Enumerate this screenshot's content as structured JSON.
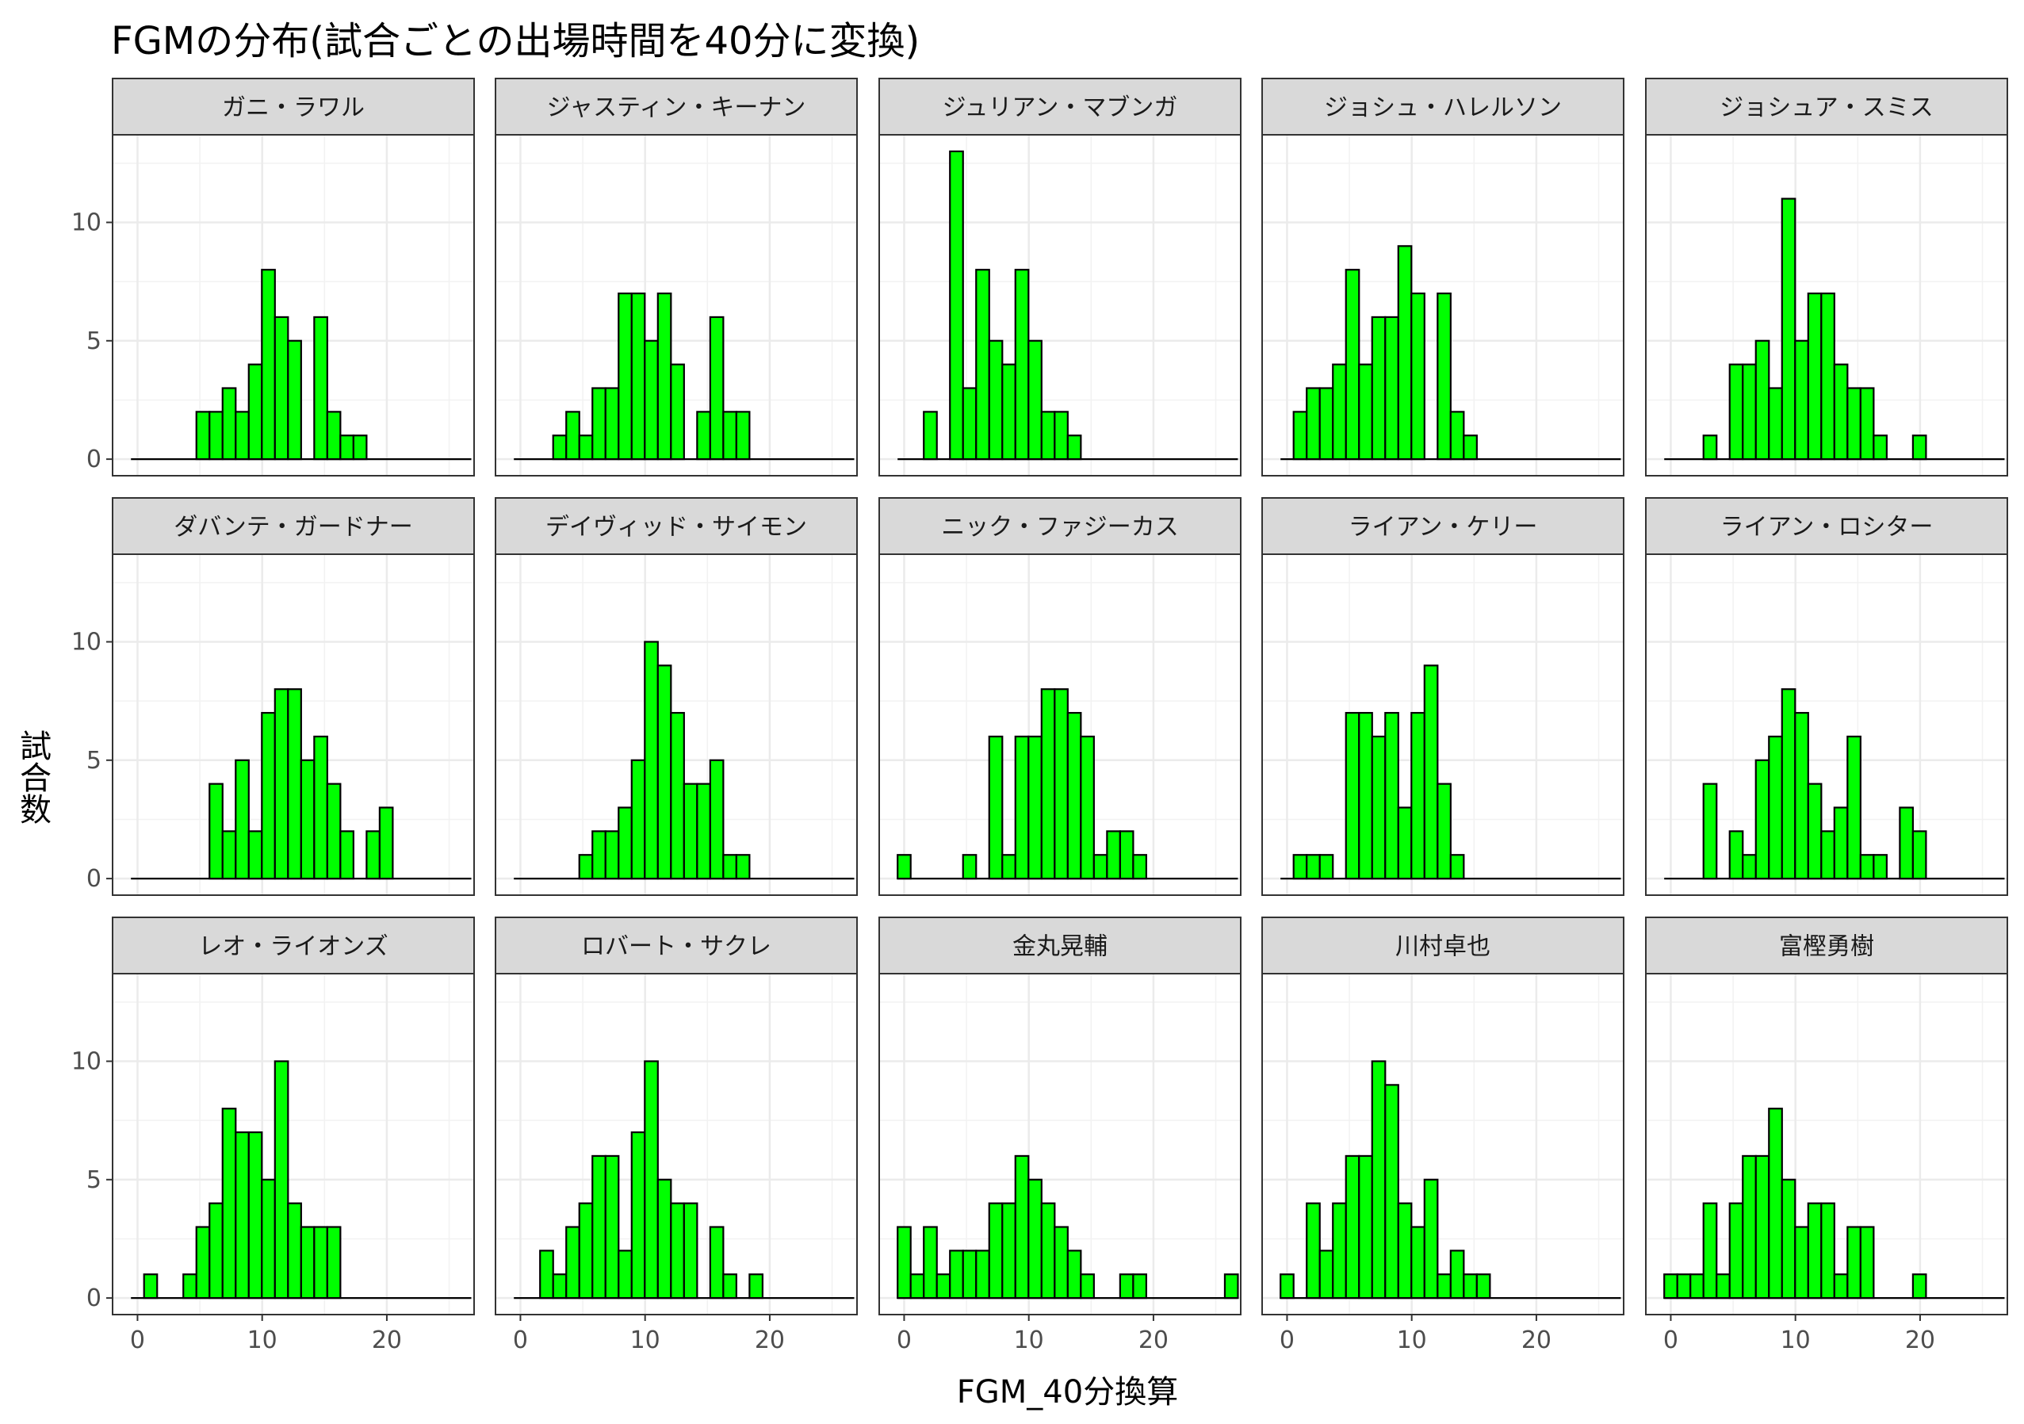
{
  "chart_data": {
    "type": "bar",
    "title": "FGMの分布(試合ごとの出場時間を40分に変換)",
    "xlabel": "FGM_40分換算",
    "ylabel": "試合数",
    "xlim": [
      -2,
      27
    ],
    "ylim": [
      -0.7,
      13.7
    ],
    "x_ticks": [
      0,
      10,
      20
    ],
    "y_ticks": [
      0,
      5,
      10
    ],
    "grid": true,
    "facet_layout": {
      "ncol": 5,
      "nrow": 3
    },
    "bin_width": 1.05,
    "bin_start": -0.525,
    "bin_count": 26,
    "bar_color": "#00ff00",
    "bar_outline": "#000000",
    "panels": [
      {
        "name": "ガニ・ラワル",
        "counts": [
          0,
          0,
          0,
          0,
          0,
          2,
          2,
          3,
          2,
          4,
          8,
          6,
          5,
          0,
          6,
          2,
          1,
          1,
          0,
          0,
          0,
          0,
          0,
          0,
          0,
          0
        ]
      },
      {
        "name": "ジャスティン・キーナン",
        "counts": [
          0,
          0,
          0,
          1,
          2,
          1,
          3,
          3,
          7,
          7,
          5,
          7,
          4,
          0,
          2,
          6,
          2,
          2,
          0,
          0,
          0,
          0,
          0,
          0,
          0,
          0
        ]
      },
      {
        "name": "ジュリアン・マブンガ",
        "counts": [
          0,
          0,
          2,
          0,
          13,
          3,
          8,
          5,
          4,
          8,
          5,
          2,
          2,
          1,
          0,
          0,
          0,
          0,
          0,
          0,
          0,
          0,
          0,
          0,
          0,
          0
        ]
      },
      {
        "name": "ジョシュ・ハレルソン",
        "counts": [
          0,
          2,
          3,
          3,
          4,
          8,
          4,
          6,
          6,
          9,
          7,
          0,
          7,
          2,
          1,
          0,
          0,
          0,
          0,
          0,
          0,
          0,
          0,
          0,
          0,
          0
        ]
      },
      {
        "name": "ジョシュア・スミス",
        "counts": [
          0,
          0,
          0,
          1,
          0,
          4,
          4,
          5,
          3,
          11,
          5,
          7,
          7,
          4,
          3,
          3,
          1,
          0,
          0,
          1,
          0,
          0,
          0,
          0,
          0,
          0
        ]
      },
      {
        "name": "ダバンテ・ガードナー",
        "counts": [
          0,
          0,
          0,
          0,
          0,
          0,
          4,
          2,
          5,
          2,
          7,
          8,
          8,
          5,
          6,
          4,
          2,
          0,
          2,
          3,
          0,
          0,
          0,
          0,
          0,
          0
        ]
      },
      {
        "name": "デイヴィッド・サイモン",
        "counts": [
          0,
          0,
          0,
          0,
          0,
          1,
          2,
          2,
          3,
          5,
          10,
          9,
          7,
          4,
          4,
          5,
          1,
          1,
          0,
          0,
          0,
          0,
          0,
          0,
          0,
          0
        ]
      },
      {
        "name": "ニック・ファジーカス",
        "counts": [
          1,
          0,
          0,
          0,
          0,
          1,
          0,
          6,
          1,
          6,
          6,
          8,
          8,
          7,
          6,
          1,
          2,
          2,
          1,
          0,
          0,
          0,
          0,
          0,
          0,
          0
        ]
      },
      {
        "name": "ライアン・ケリー",
        "counts": [
          0,
          1,
          1,
          1,
          0,
          7,
          7,
          6,
          7,
          3,
          7,
          9,
          4,
          1,
          0,
          0,
          0,
          0,
          0,
          0,
          0,
          0,
          0,
          0,
          0,
          0
        ]
      },
      {
        "name": "ライアン・ロシター",
        "counts": [
          0,
          0,
          0,
          4,
          0,
          2,
          1,
          5,
          6,
          8,
          7,
          4,
          2,
          3,
          6,
          1,
          1,
          0,
          3,
          2,
          0,
          0,
          0,
          0,
          0,
          0
        ]
      },
      {
        "name": "レオ・ライオンズ",
        "counts": [
          0,
          1,
          0,
          0,
          1,
          3,
          4,
          8,
          7,
          7,
          5,
          10,
          4,
          3,
          3,
          3,
          0,
          0,
          0,
          0,
          0,
          0,
          0,
          0,
          0,
          0
        ]
      },
      {
        "name": "ロバート・サクレ",
        "counts": [
          0,
          0,
          2,
          1,
          3,
          4,
          6,
          6,
          2,
          7,
          10,
          5,
          4,
          4,
          0,
          3,
          1,
          0,
          1,
          0,
          0,
          0,
          0,
          0,
          0,
          0
        ]
      },
      {
        "name": "金丸晃輔",
        "counts": [
          3,
          1,
          3,
          1,
          2,
          2,
          2,
          4,
          4,
          6,
          5,
          4,
          3,
          2,
          1,
          0,
          0,
          1,
          1,
          0,
          0,
          0,
          0,
          0,
          0,
          1
        ]
      },
      {
        "name": "川村卓也",
        "counts": [
          1,
          0,
          4,
          2,
          4,
          6,
          6,
          10,
          9,
          4,
          3,
          5,
          1,
          2,
          1,
          1,
          0,
          0,
          0,
          0,
          0,
          0,
          0,
          0,
          0,
          0
        ]
      },
      {
        "name": "富樫勇樹",
        "counts": [
          1,
          1,
          1,
          4,
          1,
          4,
          6,
          6,
          8,
          5,
          3,
          4,
          4,
          1,
          3,
          3,
          0,
          0,
          0,
          1,
          0,
          0,
          0,
          0,
          0,
          0
        ]
      }
    ]
  }
}
